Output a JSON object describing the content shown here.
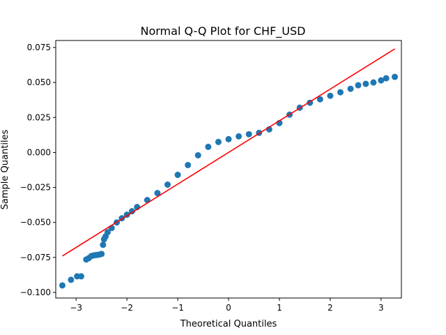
{
  "chart_data": {
    "type": "scatter",
    "title": "Normal Q-Q Plot for CHF_USD",
    "xlabel": "Theoretical Quantiles",
    "ylabel": "Sample Quantiles",
    "xlim": [
      -3.4,
      3.4
    ],
    "ylim": [
      -0.104,
      0.08
    ],
    "x_ticks": [
      -3,
      -2,
      -1,
      0,
      1,
      2,
      3
    ],
    "x_tick_labels": [
      "−3",
      "−2",
      "−1",
      "0",
      "1",
      "2",
      "3"
    ],
    "y_ticks": [
      -0.1,
      -0.075,
      -0.05,
      -0.025,
      0.0,
      0.025,
      0.05,
      0.075
    ],
    "y_tick_labels": [
      "−0.100",
      "−0.075",
      "−0.050",
      "−0.025",
      "0.000",
      "0.025",
      "0.050",
      "0.075"
    ],
    "grid": false,
    "colors": {
      "points": "#1f77b4",
      "reference_line": "#ff0000"
    },
    "reference_line": {
      "name": "",
      "x": [
        -3.27,
        3.27
      ],
      "y": [
        -0.074,
        0.074
      ]
    },
    "series": [
      {
        "name": "",
        "x": [
          -3.27,
          -3.1,
          -2.98,
          -2.9,
          -2.8,
          -2.75,
          -2.7,
          -2.65,
          -2.6,
          -2.55,
          -2.5,
          -2.47,
          -2.45,
          -2.42,
          -2.38,
          -2.3,
          -2.2,
          -2.1,
          -2.0,
          -1.9,
          -1.8,
          -1.6,
          -1.4,
          -1.2,
          -1.0,
          -0.8,
          -0.6,
          -0.4,
          -0.2,
          0.0,
          0.2,
          0.4,
          0.6,
          0.8,
          1.0,
          1.2,
          1.4,
          1.6,
          1.8,
          2.0,
          2.2,
          2.4,
          2.55,
          2.7,
          2.85,
          3.0,
          3.1,
          3.27
        ],
        "y": [
          -0.095,
          -0.091,
          -0.0885,
          -0.0885,
          -0.0765,
          -0.0755,
          -0.074,
          -0.0735,
          -0.0733,
          -0.073,
          -0.0725,
          -0.066,
          -0.062,
          -0.06,
          -0.057,
          -0.054,
          -0.05,
          -0.047,
          -0.0445,
          -0.042,
          -0.039,
          -0.034,
          -0.029,
          -0.023,
          -0.016,
          -0.009,
          -0.002,
          0.004,
          0.0075,
          0.0095,
          0.0115,
          0.013,
          0.014,
          0.0165,
          0.021,
          0.027,
          0.032,
          0.0355,
          0.038,
          0.0405,
          0.043,
          0.0455,
          0.048,
          0.049,
          0.05,
          0.0515,
          0.053,
          0.054
        ]
      }
    ]
  }
}
